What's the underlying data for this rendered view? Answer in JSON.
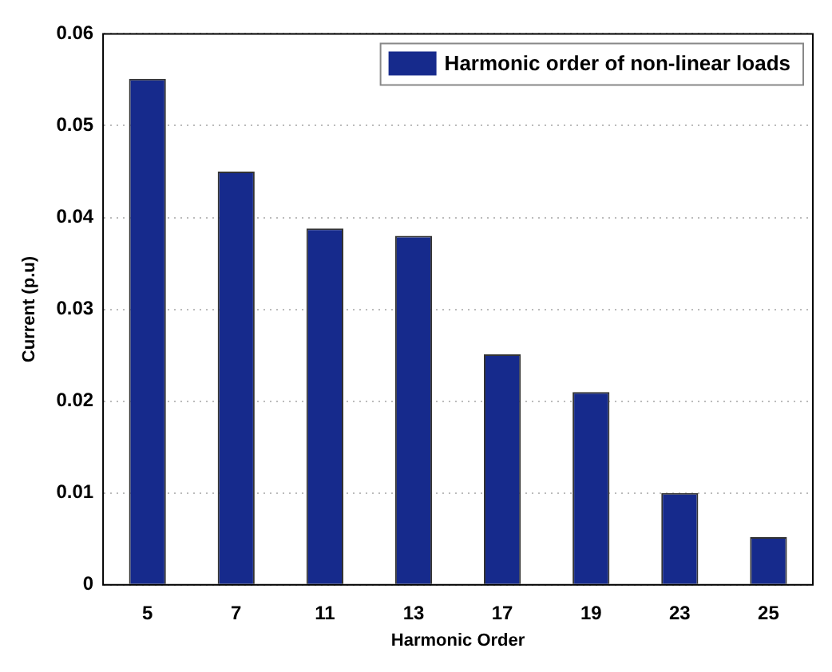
{
  "chart_data": {
    "type": "bar",
    "xlabel": "Harmonic Order",
    "ylabel": "Current (p.u)",
    "categories": [
      "5",
      "7",
      "11",
      "13",
      "17",
      "19",
      "23",
      "25"
    ],
    "series": [
      {
        "name": "Harmonic order of non-linear loads",
        "color": "#162a8c",
        "values": [
          0.0551,
          0.045,
          0.0388,
          0.038,
          0.0251,
          0.021,
          0.01,
          0.0052
        ]
      }
    ],
    "ylim": [
      0,
      0.06
    ],
    "yticks": [
      0,
      0.01,
      0.02,
      0.03,
      0.04,
      0.05,
      0.06
    ],
    "grid": "y",
    "legend": "top right"
  }
}
